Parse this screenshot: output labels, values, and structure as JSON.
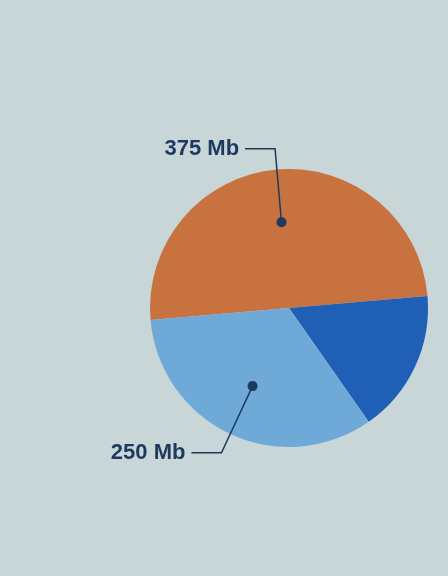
{
  "chart_data": {
    "type": "pie",
    "values": [
      375,
      125,
      250
    ],
    "value_labels": [
      "375 Mb",
      null,
      "250 Mb"
    ],
    "colors": [
      "#c8733f",
      "#1f5fb5",
      "#6fa9d8"
    ],
    "data_labels": true
  }
}
